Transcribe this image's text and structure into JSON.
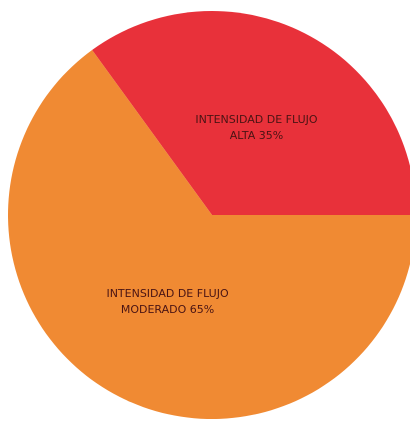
{
  "chart_data": {
    "type": "pie",
    "categories": [
      "INTENSIDAD DE FLUJO ALTA",
      "INTENSIDAD DE FLUJO MODERADO"
    ],
    "values": [
      35,
      65
    ],
    "value_labels": [
      "35%",
      "65%"
    ],
    "colors": [
      "#e8313a",
      "#f08a33"
    ]
  }
}
